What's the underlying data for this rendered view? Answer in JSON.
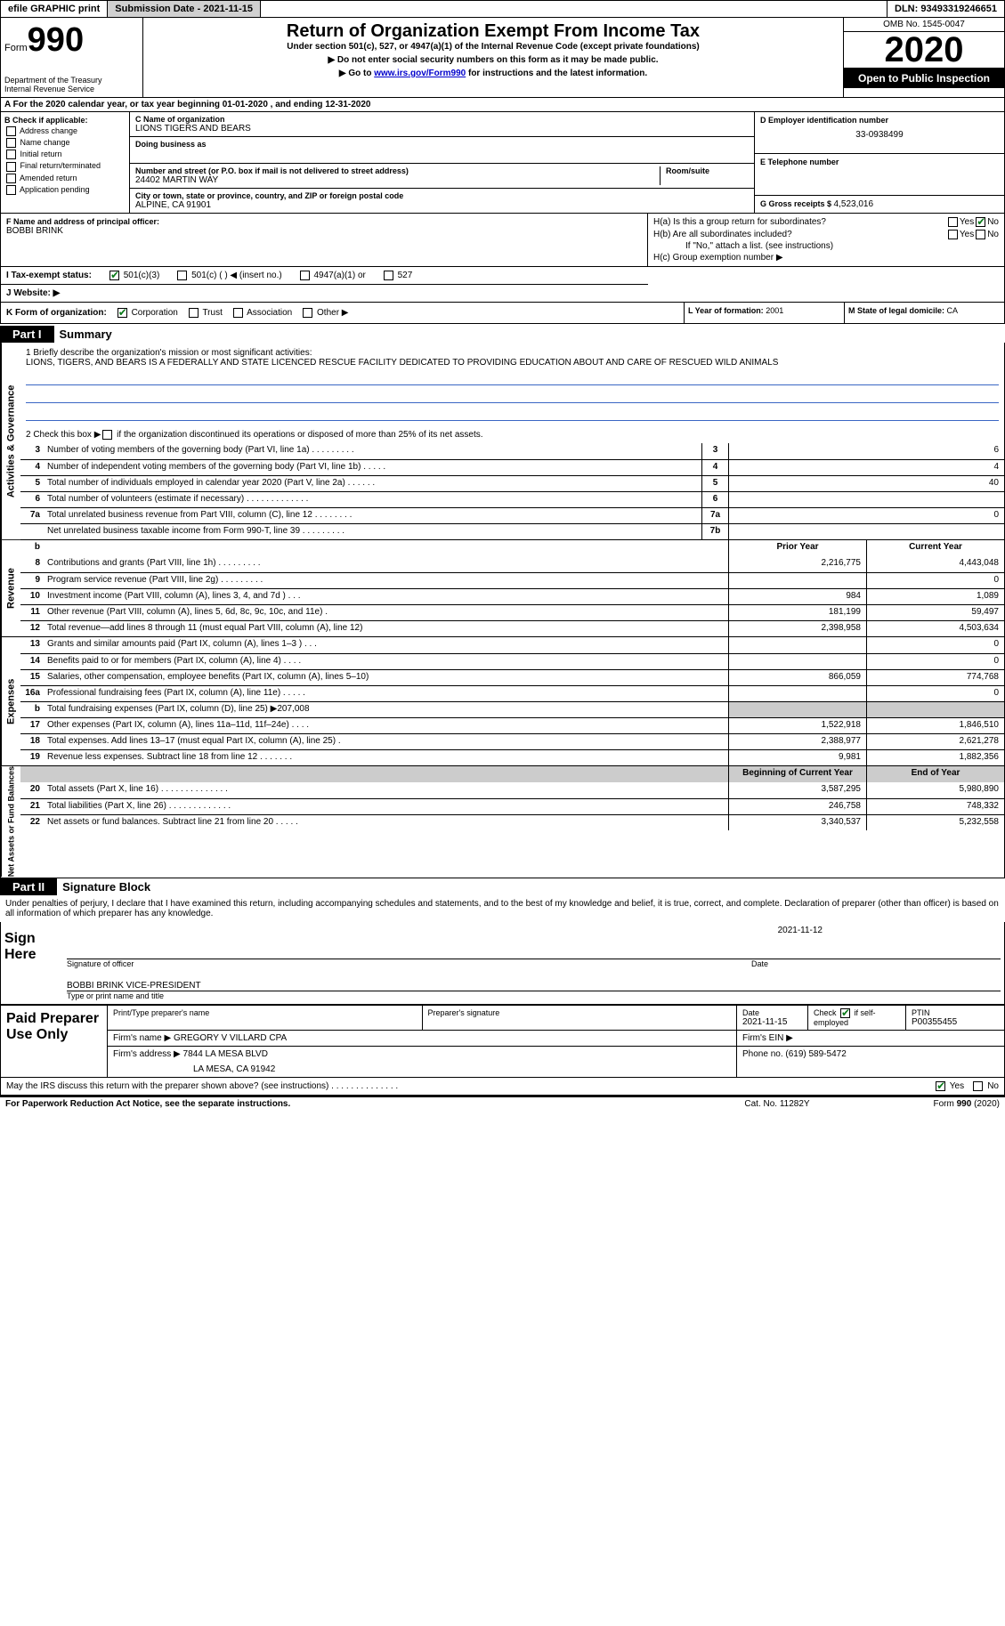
{
  "topbar": {
    "efile": "efile GRAPHIC print",
    "submission_label": "Submission Date - ",
    "submission_date": "2021-11-15",
    "dln_label": "DLN: ",
    "dln": "93493319246651"
  },
  "header": {
    "form_word": "Form",
    "form_num": "990",
    "dept": "Department of the Treasury\nInternal Revenue Service",
    "title": "Return of Organization Exempt From Income Tax",
    "sub": "Under section 501(c), 527, or 4947(a)(1) of the Internal Revenue Code (except private foundations)",
    "note1": "▶ Do not enter social security numbers on this form as it may be made public.",
    "note2_pre": "▶ Go to ",
    "note2_link": "www.irs.gov/Form990",
    "note2_post": " for instructions and the latest information.",
    "omb": "OMB No. 1545-0047",
    "year": "2020",
    "inspect": "Open to Public Inspection"
  },
  "line_a": "A For the 2020 calendar year, or tax year beginning 01-01-2020    , and ending 12-31-2020",
  "section_b": {
    "heading": "B Check if applicable:",
    "items": [
      "Address change",
      "Name change",
      "Initial return",
      "Final return/terminated",
      "Amended return",
      "Application pending"
    ]
  },
  "section_c": {
    "name_label": "C Name of organization",
    "name": "LIONS TIGERS AND BEARS",
    "dba_label": "Doing business as",
    "addr_label": "Number and street (or P.O. box if mail is not delivered to street address)",
    "room_label": "Room/suite",
    "addr": "24402 MARTIN WAY",
    "city_label": "City or town, state or province, country, and ZIP or foreign postal code",
    "city": "ALPINE, CA  91901"
  },
  "section_d": {
    "ein_label": "D Employer identification number",
    "ein": "33-0938499",
    "phone_label": "E Telephone number",
    "gross_label": "G Gross receipts $ ",
    "gross": "4,523,016"
  },
  "section_f": {
    "label": "F  Name and address of principal officer:",
    "name": "BOBBI BRINK"
  },
  "section_h": {
    "ha": "H(a)  Is this a group return for subordinates?",
    "hb": "H(b)  Are all subordinates included?",
    "hb_note": "If \"No,\" attach a list. (see instructions)",
    "hc": "H(c)  Group exemption number ▶",
    "yes": "Yes",
    "no": "No"
  },
  "section_i": {
    "label": "I    Tax-exempt status:",
    "o1": "501(c)(3)",
    "o2": "501(c) (   ) ◀ (insert no.)",
    "o3": "4947(a)(1) or",
    "o4": "527"
  },
  "section_j": {
    "label": "J    Website: ▶"
  },
  "section_k": {
    "label": "K Form of organization:",
    "o1": "Corporation",
    "o2": "Trust",
    "o3": "Association",
    "o4": "Other ▶"
  },
  "section_l": {
    "label": "L Year of formation: ",
    "val": "2001"
  },
  "section_m": {
    "label": "M State of legal domicile: ",
    "val": "CA"
  },
  "part1": {
    "label": "Part I",
    "title": "Summary"
  },
  "mission": {
    "q1": "1   Briefly describe the organization's mission or most significant activities:",
    "text": "LIONS, TIGERS, AND BEARS IS A FEDERALLY AND STATE LICENCED RESCUE FACILITY DEDICATED TO PROVIDING EDUCATION ABOUT AND CARE OF RESCUED WILD ANIMALS",
    "q2_pre": "2   Check this box ▶",
    "q2_post": " if the organization discontinued its operations or disposed of more than 25% of its net assets."
  },
  "gov_rows": [
    {
      "n": "3",
      "d": "Number of voting members of the governing body (Part VI, line 1a)   .    .    .    .    .    .    .    .    .",
      "b": "3",
      "v": "6"
    },
    {
      "n": "4",
      "d": "Number of independent voting members of the governing body (Part VI, line 1b)   .    .    .    .    .",
      "b": "4",
      "v": "4"
    },
    {
      "n": "5",
      "d": "Total number of individuals employed in calendar year 2020 (Part V, line 2a)   .    .    .    .    .    .",
      "b": "5",
      "v": "40"
    },
    {
      "n": "6",
      "d": "Total number of volunteers (estimate if necessary)   .    .    .    .    .    .    .    .    .    .    .    .    .",
      "b": "6",
      "v": ""
    },
    {
      "n": "7a",
      "d": "Total unrelated business revenue from Part VIII, column (C), line 12   .    .    .    .    .    .    .    .",
      "b": "7a",
      "v": "0"
    },
    {
      "n": "",
      "d": "Net unrelated business taxable income from Form 990-T, line 39   .    .    .    .    .    .    .    .    .",
      "b": "7b",
      "v": ""
    }
  ],
  "pycy_header": {
    "prior": "Prior Year",
    "current": "Current Year"
  },
  "revenue_rows": [
    {
      "n": "8",
      "d": "Contributions and grants (Part VIII, line 1h)   .    .    .    .    .    .    .    .    .",
      "p": "2,216,775",
      "c": "4,443,048"
    },
    {
      "n": "9",
      "d": "Program service revenue (Part VIII, line 2g)   .    .    .    .    .    .    .    .    .",
      "p": "",
      "c": "0"
    },
    {
      "n": "10",
      "d": "Investment income (Part VIII, column (A), lines 3, 4, and 7d )   .    .    .",
      "p": "984",
      "c": "1,089"
    },
    {
      "n": "11",
      "d": "Other revenue (Part VIII, column (A), lines 5, 6d, 8c, 9c, 10c, and 11e)   .",
      "p": "181,199",
      "c": "59,497"
    },
    {
      "n": "12",
      "d": "Total revenue—add lines 8 through 11 (must equal Part VIII, column (A), line 12)",
      "p": "2,398,958",
      "c": "4,503,634"
    }
  ],
  "expense_rows": [
    {
      "n": "13",
      "d": "Grants and similar amounts paid (Part IX, column (A), lines 1–3 )   .    .    .",
      "p": "",
      "c": "0"
    },
    {
      "n": "14",
      "d": "Benefits paid to or for members (Part IX, column (A), line 4)   .    .    .    .",
      "p": "",
      "c": "0"
    },
    {
      "n": "15",
      "d": "Salaries, other compensation, employee benefits (Part IX, column (A), lines 5–10)",
      "p": "866,059",
      "c": "774,768"
    },
    {
      "n": "16a",
      "d": "Professional fundraising fees (Part IX, column (A), line 11e)   .    .    .    .    .",
      "p": "",
      "c": "0"
    },
    {
      "n": "b",
      "d": "Total fundraising expenses (Part IX, column (D), line 25) ▶207,008",
      "shade": true
    },
    {
      "n": "17",
      "d": "Other expenses (Part IX, column (A), lines 11a–11d, 11f–24e)   .    .    .    .",
      "p": "1,522,918",
      "c": "1,846,510"
    },
    {
      "n": "18",
      "d": "Total expenses. Add lines 13–17 (must equal Part IX, column (A), line 25)   .",
      "p": "2,388,977",
      "c": "2,621,278"
    },
    {
      "n": "19",
      "d": "Revenue less expenses. Subtract line 18 from line 12   .    .    .    .    .    .    .",
      "p": "9,981",
      "c": "1,882,356"
    }
  ],
  "na_header": {
    "prior": "Beginning of Current Year",
    "current": "End of Year"
  },
  "na_rows": [
    {
      "n": "20",
      "d": "Total assets (Part X, line 16)   .    .    .    .    .    .    .    .    .    .    .    .    .    .",
      "p": "3,587,295",
      "c": "5,980,890"
    },
    {
      "n": "21",
      "d": "Total liabilities (Part X, line 26)   .    .    .    .    .    .    .    .    .    .    .    .    .",
      "p": "246,758",
      "c": "748,332"
    },
    {
      "n": "22",
      "d": "Net assets or fund balances. Subtract line 21 from line 20   .    .    .    .    .",
      "p": "3,340,537",
      "c": "5,232,558"
    }
  ],
  "part2": {
    "label": "Part II",
    "title": "Signature Block"
  },
  "penalty": "Under penalties of perjury, I declare that I have examined this return, including accompanying schedules and statements, and to the best of my knowledge and belief, it is true, correct, and complete. Declaration of preparer (other than officer) is based on all information of which preparer has any knowledge.",
  "sign": {
    "label": "Sign Here",
    "sig_of_officer": "Signature of officer",
    "date": "Date",
    "date_val": "2021-11-12",
    "name": "BOBBI BRINK  VICE-PRESIDENT",
    "type_print": "Type or print name and title"
  },
  "paid": {
    "label": "Paid Preparer Use Only",
    "h1": "Print/Type preparer's name",
    "h2": "Preparer's signature",
    "h3": "Date",
    "h3v": "2021-11-15",
    "h4": "Check          if self-employed",
    "h5": "PTIN",
    "h5v": "P00355455",
    "firm_name_lbl": "Firm's name    ▶",
    "firm_name": "GREGORY V VILLARD CPA",
    "firm_ein_lbl": "Firm's EIN ▶",
    "firm_addr_lbl": "Firm's address ▶",
    "firm_addr": "7844 LA MESA BLVD",
    "firm_addr2": "LA MESA, CA  91942",
    "phone_lbl": "Phone no. ",
    "phone": "(619) 589-5472"
  },
  "discuss": {
    "q": "May the IRS discuss this return with the preparer shown above? (see instructions)   .    .    .    .    .    .    .    .    .    .    .    .    .    .",
    "yes": "Yes",
    "no": "No"
  },
  "footer": {
    "left": "For Paperwork Reduction Act Notice, see the separate instructions.",
    "mid": "Cat. No. 11282Y",
    "right": "Form 990 (2020)"
  },
  "colors": {
    "link": "#0000cc",
    "check": "#0a7a19",
    "shade": "#cccccc",
    "mission_line": "#3a66c4"
  }
}
